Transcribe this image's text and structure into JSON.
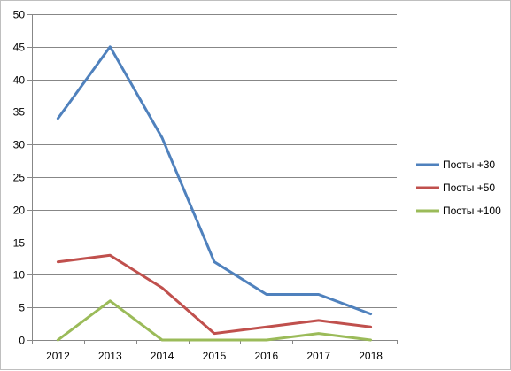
{
  "chart_data": {
    "type": "line",
    "categories": [
      "2012",
      "2013",
      "2014",
      "2015",
      "2016",
      "2017",
      "2018"
    ],
    "ylim": [
      0,
      50
    ],
    "yticks": [
      0,
      5,
      10,
      15,
      20,
      25,
      30,
      35,
      40,
      45,
      50
    ],
    "grid": true,
    "legend_position": "right",
    "series": [
      {
        "name": "Посты +30",
        "color": "#4f81bd",
        "values": [
          34,
          45,
          31,
          12,
          7,
          7,
          4
        ]
      },
      {
        "name": "Посты +50",
        "color": "#c0504d",
        "values": [
          12,
          13,
          8,
          1,
          2,
          3,
          2
        ]
      },
      {
        "name": "Посты +100",
        "color": "#9bbb59",
        "values": [
          0,
          6,
          0,
          0,
          0,
          1,
          0
        ]
      }
    ]
  }
}
